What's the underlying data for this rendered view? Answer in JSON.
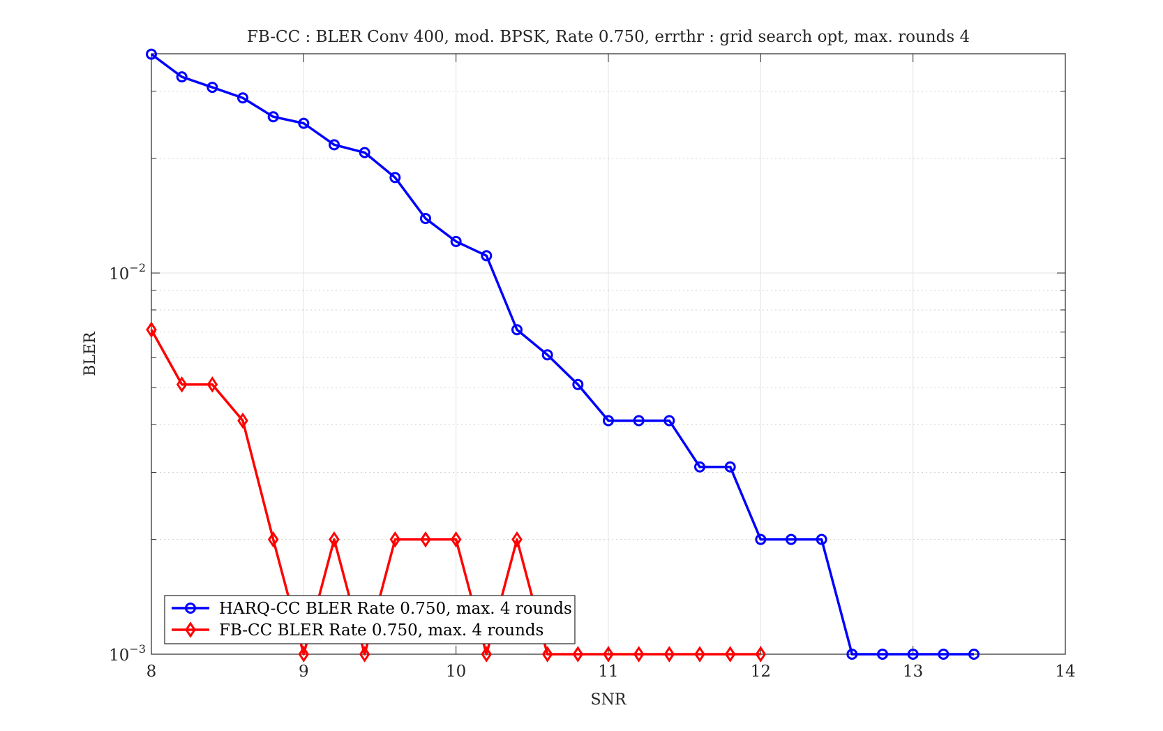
{
  "chart_data": {
    "type": "line",
    "title": "FB-CC : BLER Conv 400, mod. BPSK, Rate 0.750, errthr : grid search opt, max. rounds 4",
    "xlabel": "SNR",
    "ylabel": "BLER",
    "x_scale": "linear",
    "y_scale": "log",
    "xlim": [
      8,
      14
    ],
    "ylim": [
      0.001,
      0.0376
    ],
    "x_ticks": [
      8,
      9,
      10,
      11,
      12,
      13,
      14
    ],
    "x_tick_labels": [
      "8",
      "9",
      "10",
      "11",
      "12",
      "13",
      "14"
    ],
    "y_ticks": [
      {
        "value": 0.01,
        "base": "10",
        "exp": "−2"
      },
      {
        "value": 0.001,
        "base": "10",
        "exp": "−3"
      }
    ],
    "grid": true,
    "legend_position": "bottom-left",
    "series": [
      {
        "name": "HARQ-CC BLER Rate 0.750, max. 4 rounds",
        "color": "#0000ff",
        "marker": "circle",
        "x": [
          8,
          8.2,
          8.4,
          8.6,
          8.8,
          9,
          9.2,
          9.4,
          9.6,
          9.8,
          10,
          10.2,
          10.4,
          10.6,
          10.8,
          11,
          11.2,
          11.4,
          11.6,
          11.8,
          12,
          12.2,
          12.4,
          12.6,
          12.8,
          13,
          13.2,
          13.4
        ],
        "y": [
          0.0375,
          0.0327,
          0.0307,
          0.0288,
          0.0257,
          0.0247,
          0.0217,
          0.0207,
          0.0178,
          0.0139,
          0.0121,
          0.0111,
          0.0071,
          0.0061,
          0.0051,
          0.0041,
          0.0041,
          0.0041,
          0.0031,
          0.0031,
          0.002,
          0.002,
          0.002,
          0.001,
          0.001,
          0.001,
          0.001,
          0.001
        ]
      },
      {
        "name": "FB-CC BLER Rate 0.750, max. 4 rounds",
        "color": "#ff0000",
        "marker": "diamond",
        "x": [
          8,
          8.2,
          8.4,
          8.6,
          8.8,
          9,
          9.2,
          9.4,
          9.6,
          9.8,
          10,
          10.2,
          10.4,
          10.6,
          10.8,
          11,
          11.2,
          11.4,
          11.6,
          11.8,
          12
        ],
        "y": [
          0.0071,
          0.0051,
          0.0051,
          0.0041,
          0.002,
          0.001,
          0.002,
          0.001,
          0.002,
          0.002,
          0.002,
          0.001,
          0.002,
          0.001,
          0.001,
          0.001,
          0.001,
          0.001,
          0.001,
          0.001,
          0.001
        ]
      }
    ]
  }
}
